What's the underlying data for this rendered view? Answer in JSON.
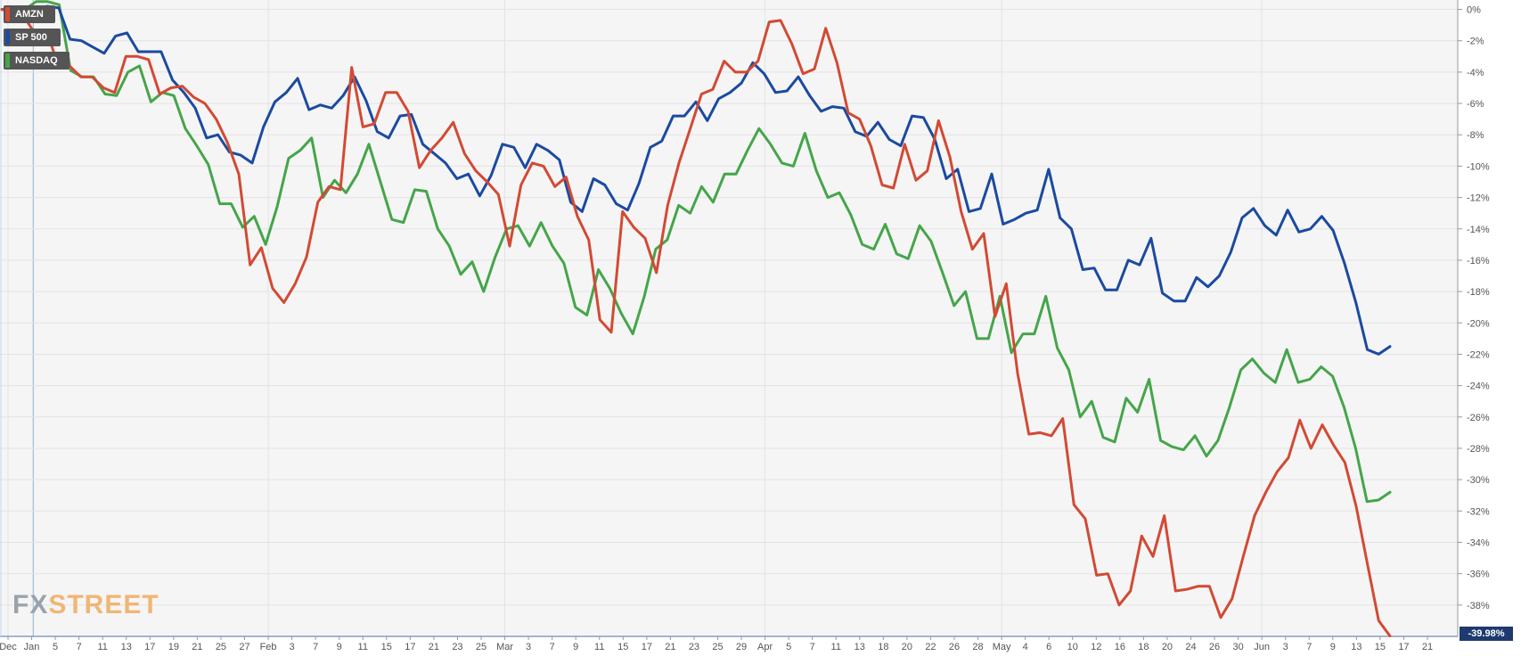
{
  "chart_data": {
    "type": "line",
    "legend_placement": "top-left",
    "grid": true,
    "series": [
      {
        "name": "AMZN",
        "color": "#d24a34",
        "values": [
          0,
          -0.2,
          -0.5,
          -1.6,
          -1.4,
          -3.6,
          -3.6,
          -4.3,
          -4.3,
          -5.0,
          -5.3,
          -3.0,
          -3.0,
          -3.2,
          -5.4,
          -5.0,
          -4.9,
          -5.6,
          -6.0,
          -7.0,
          -8.5,
          -10.5,
          -16.3,
          -15.2,
          -17.8,
          -18.7,
          -17.5,
          -15.8,
          -12.3,
          -11.3,
          -11.5,
          -3.7,
          -7.5,
          -7.3,
          -5.3,
          -5.3,
          -6.5,
          -10.1,
          -9.0,
          -8.2,
          -7.2,
          -9.2,
          -10.3,
          -11.0,
          -11.8,
          -15.1,
          -11.2,
          -9.8,
          -10.0,
          -11.3,
          -10.7,
          -13.2,
          -14.7,
          -19.8,
          -20.6,
          -12.9,
          -13.9,
          -14.6,
          -16.8,
          -12.5,
          -9.8,
          -7.6,
          -5.4,
          -5.1,
          -3.3,
          -4.0,
          -4.0,
          -3.3,
          -0.8,
          -0.7,
          -2.2,
          -4.1,
          -3.8,
          -1.2,
          -3.4,
          -6.6,
          -7.0,
          -8.7,
          -11.2,
          -11.4,
          -8.6,
          -10.9,
          -10.3,
          -7.1,
          -9.4,
          -12.9,
          -15.3,
          -14.3,
          -19.6,
          -17.5,
          -23.2,
          -27.1,
          -27.0,
          -27.2,
          -26.1,
          -31.6,
          -32.5,
          -36.1,
          -36.0,
          -38.0,
          -37.1,
          -33.6,
          -34.9,
          -32.3,
          -37.1,
          -37.0,
          -36.8,
          -36.8,
          -38.8,
          -37.6,
          -34.9,
          -32.3,
          -30.8,
          -29.5,
          -28.6,
          -26.2,
          -28.0,
          -26.5,
          -27.8,
          -28.9,
          -31.7,
          -35.4,
          -39.0,
          -39.98
        ]
      },
      {
        "name": "SP 500",
        "color": "#1b4aa0",
        "values": [
          0,
          0,
          0,
          0,
          0.2,
          0.1,
          -1.9,
          -2.0,
          -2.4,
          -2.8,
          -1.7,
          -1.5,
          -2.7,
          -2.7,
          -2.7,
          -4.5,
          -5.3,
          -6.3,
          -8.2,
          -8.0,
          -9.1,
          -9.3,
          -9.8,
          -7.5,
          -5.9,
          -5.3,
          -4.4,
          -6.4,
          -6.1,
          -6.3,
          -5.5,
          -4.3,
          -5.8,
          -7.8,
          -8.2,
          -6.8,
          -6.7,
          -8.6,
          -9.2,
          -9.8,
          -10.8,
          -10.5,
          -11.9,
          -10.6,
          -8.6,
          -8.8,
          -10.1,
          -8.6,
          -9.0,
          -9.6,
          -12.3,
          -12.9,
          -10.8,
          -11.2,
          -12.4,
          -12.8,
          -11.1,
          -8.8,
          -8.4,
          -6.8,
          -6.8,
          -5.9,
          -7.1,
          -5.7,
          -5.3,
          -4.7,
          -3.4,
          -4.1,
          -5.3,
          -5.2,
          -4.3,
          -5.5,
          -6.5,
          -6.2,
          -6.3,
          -7.8,
          -8.1,
          -7.2,
          -8.3,
          -8.7,
          -6.8,
          -6.9,
          -8.3,
          -10.8,
          -10.2,
          -12.9,
          -12.7,
          -10.5,
          -13.7,
          -13.4,
          -13.0,
          -12.8,
          -10.2,
          -13.3,
          -14.0,
          -16.6,
          -16.5,
          -17.9,
          -17.9,
          -16.0,
          -16.3,
          -14.6,
          -18.1,
          -18.6,
          -18.6,
          -17.1,
          -17.7,
          -17.0,
          -15.5,
          -13.3,
          -12.7,
          -13.8,
          -14.4,
          -12.8,
          -14.2,
          -14.0,
          -13.2,
          -14.1,
          -16.2,
          -18.7,
          -21.7,
          -22.0,
          -21.5
        ]
      },
      {
        "name": "NASDAQ",
        "color": "#45a54a",
        "values": [
          0,
          0,
          0,
          0.5,
          0.5,
          0.3,
          -3.9,
          -4.3,
          -4.3,
          -5.4,
          -5.5,
          -4.0,
          -3.6,
          -5.9,
          -5.3,
          -5.5,
          -7.6,
          -8.7,
          -9.9,
          -12.4,
          -12.4,
          -13.9,
          -13.2,
          -15.0,
          -12.6,
          -9.5,
          -9.0,
          -8.2,
          -12.0,
          -10.9,
          -11.7,
          -10.5,
          -8.6,
          -11.0,
          -13.4,
          -13.6,
          -11.5,
          -11.6,
          -14.0,
          -15.1,
          -16.9,
          -16.1,
          -18.0,
          -15.8,
          -14.0,
          -13.8,
          -15.1,
          -13.6,
          -15.1,
          -16.2,
          -19.0,
          -19.5,
          -16.6,
          -17.8,
          -19.4,
          -20.7,
          -18.3,
          -15.3,
          -14.7,
          -12.5,
          -13.0,
          -11.3,
          -12.3,
          -10.5,
          -10.5,
          -9.0,
          -7.6,
          -8.6,
          -9.8,
          -10.0,
          -7.9,
          -10.3,
          -12.0,
          -11.7,
          -13.1,
          -15.0,
          -15.3,
          -13.7,
          -15.6,
          -15.9,
          -13.8,
          -14.8,
          -16.8,
          -18.9,
          -18.0,
          -21.0,
          -21.0,
          -18.3,
          -21.9,
          -20.7,
          -20.7,
          -18.3,
          -21.6,
          -23.0,
          -26.0,
          -25.0,
          -27.3,
          -27.6,
          -24.8,
          -25.7,
          -23.6,
          -27.5,
          -27.9,
          -28.1,
          -27.2,
          -28.5,
          -27.5,
          -25.4,
          -23.0,
          -22.3,
          -23.2,
          -23.8,
          -21.7,
          -23.8,
          -23.6,
          -22.8,
          -23.4,
          -25.4,
          -28.0,
          -31.4,
          -31.3,
          -30.8
        ]
      }
    ],
    "x_tick_labels": [
      "Dec",
      "Jan",
      "5",
      "7",
      "11",
      "13",
      "17",
      "19",
      "21",
      "25",
      "27",
      "Feb",
      "3",
      "7",
      "9",
      "11",
      "15",
      "17",
      "21",
      "23",
      "25",
      "Mar",
      "3",
      "7",
      "9",
      "11",
      "15",
      "17",
      "21",
      "23",
      "25",
      "29",
      "Apr",
      "5",
      "7",
      "11",
      "13",
      "18",
      "20",
      "22",
      "26",
      "28",
      "May",
      "4",
      "6",
      "10",
      "12",
      "16",
      "18",
      "20",
      "24",
      "26",
      "30",
      "Jun",
      "3",
      "7",
      "9",
      "13",
      "15",
      "17",
      "21"
    ],
    "y_tick_labels": [
      "0%",
      "-2%",
      "-4%",
      "-6%",
      "-8%",
      "-10%",
      "-12%",
      "-14%",
      "-16%",
      "-18%",
      "-20%",
      "-22%",
      "-24%",
      "-26%",
      "-28%",
      "-30%",
      "-32%",
      "-34%",
      "-36%",
      "-38%"
    ],
    "ylim": [
      -40,
      0.6
    ],
    "ylabel_unit": "%",
    "last_value_label": "-39.98%"
  },
  "logo": {
    "part1": "FX",
    "part2": "STREET"
  },
  "colors": {
    "background": "#f5f5f5",
    "grid": "#e3e3e3",
    "legend_bg": "#555555",
    "last_value_bg": "#1e3a6e"
  }
}
